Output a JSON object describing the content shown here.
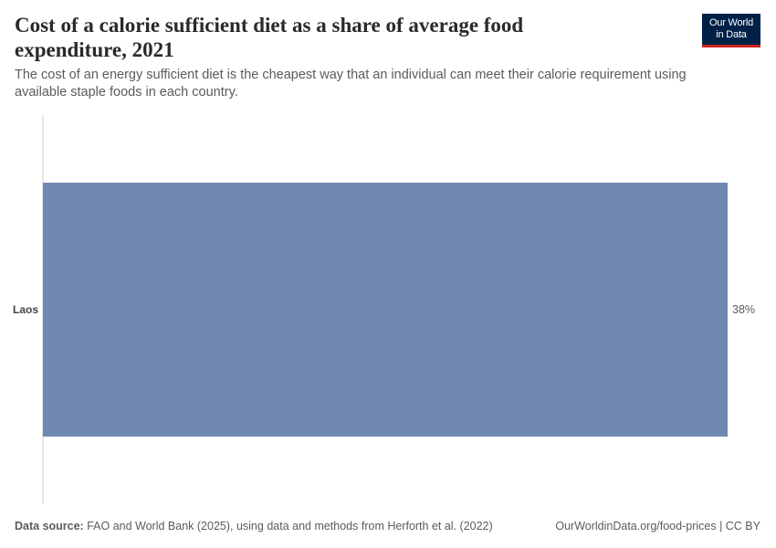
{
  "header": {
    "title": "Cost of a calorie sufficient diet as a share of average food expenditure, 2021",
    "subtitle": "The cost of an energy sufficient diet is the cheapest way that an individual can meet their calorie requirement using available staple foods in each country.",
    "logo_line1": "Our World",
    "logo_line2": "in Data"
  },
  "colors": {
    "bar": "#6f88b0",
    "axis": "#cccccc",
    "logo_bg": "#002147",
    "logo_accent": "#ce261e"
  },
  "chart_data": {
    "type": "bar",
    "orientation": "horizontal",
    "categories": [
      "Laos"
    ],
    "values": [
      38
    ],
    "value_labels": [
      "38%"
    ],
    "unit": "%",
    "xlim": [
      0,
      38
    ],
    "title": "Cost of a calorie sufficient diet as a share of average food expenditure, 2021",
    "grid": false
  },
  "footer": {
    "source_label": "Data source:",
    "source_text": "FAO and World Bank (2025), using data and methods from Herforth et al. (2022)",
    "link_text": "OurWorldinData.org/food-prices | CC BY"
  }
}
